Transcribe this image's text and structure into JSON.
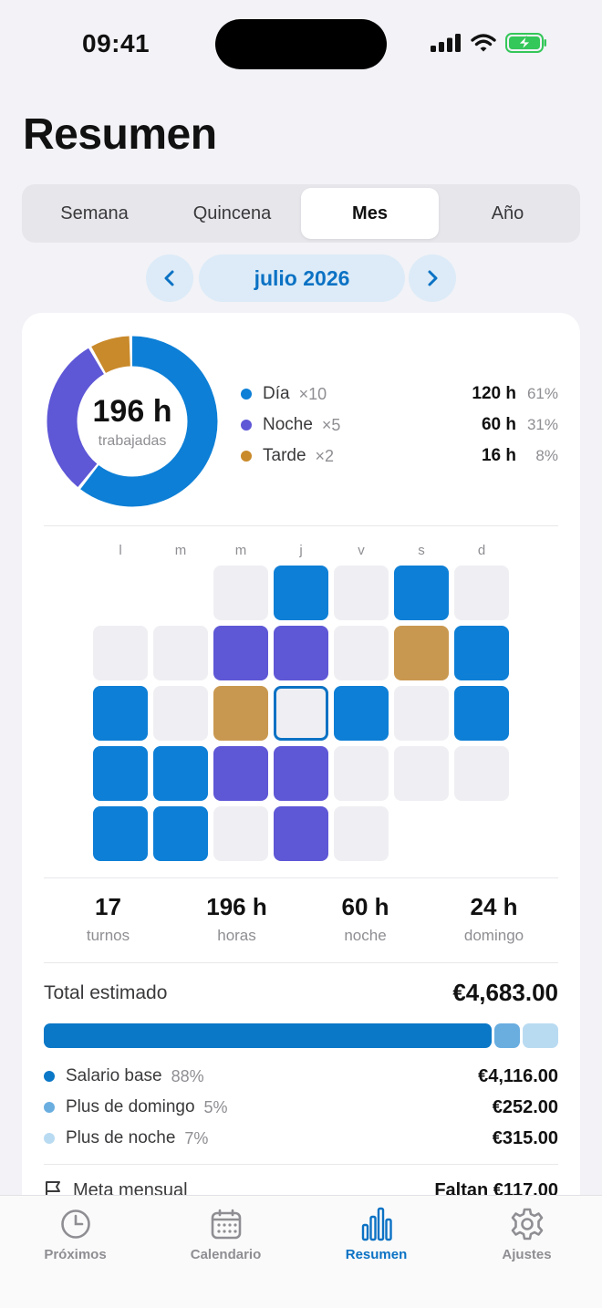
{
  "status_bar": {
    "time": "09:41"
  },
  "page": {
    "title": "Resumen"
  },
  "segments": [
    {
      "label": "Semana",
      "active": false
    },
    {
      "label": "Quincena",
      "active": false
    },
    {
      "label": "Mes",
      "active": true
    },
    {
      "label": "Año",
      "active": false
    }
  ],
  "month_nav": {
    "label": "julio 2026",
    "prev_icon": "chevron-left-icon",
    "next_icon": "chevron-right-icon"
  },
  "donut": {
    "value": "196 h",
    "caption": "trabajadas",
    "segments": [
      {
        "name": "Día",
        "fraction": 0.61,
        "color": "#0d7fd6"
      },
      {
        "name": "Noche",
        "fraction": 0.31,
        "color": "#5e57d6"
      },
      {
        "name": "Tarde",
        "fraction": 0.08,
        "color": "#c98a2b"
      }
    ]
  },
  "legend": [
    {
      "name": "Día",
      "count": "×10",
      "hours": "120 h",
      "pct": "61%",
      "color": "#0d7fd6"
    },
    {
      "name": "Noche",
      "count": "×5",
      "hours": "60 h",
      "pct": "31%",
      "color": "#5e57d6"
    },
    {
      "name": "Tarde",
      "count": "×2",
      "hours": "16 h",
      "pct": "8%",
      "color": "#c98a2b"
    }
  ],
  "calendar": {
    "weekdays": [
      "l",
      "m",
      "m",
      "j",
      "v",
      "s",
      "d"
    ],
    "cells": [
      "empty",
      "empty",
      "free",
      "dia",
      "free",
      "dia",
      "free",
      "free",
      "free",
      "noche",
      "noche",
      "free",
      "tarde",
      "dia",
      "dia",
      "free",
      "tarde",
      "today",
      "dia",
      "free",
      "dia",
      "dia",
      "dia",
      "noche",
      "noche",
      "free",
      "free",
      "free",
      "dia",
      "dia",
      "free",
      "noche",
      "free",
      "empty",
      "empty"
    ]
  },
  "stats": [
    {
      "value": "17",
      "label": "turnos"
    },
    {
      "value": "196 h",
      "label": "horas"
    },
    {
      "value": "60 h",
      "label": "noche"
    },
    {
      "value": "24 h",
      "label": "domingo"
    }
  ],
  "total": {
    "label": "Total estimado",
    "value": "€4,683.00"
  },
  "breakdown": [
    {
      "name": "Salario base",
      "pct": "88%",
      "amount": "€4,116.00",
      "fraction": 0.88,
      "color": "#0b78c7"
    },
    {
      "name": "Plus de domingo",
      "pct": "5%",
      "amount": "€252.00",
      "fraction": 0.05,
      "color": "#6aaee0"
    },
    {
      "name": "Plus de noche",
      "pct": "7%",
      "amount": "€315.00",
      "fraction": 0.07,
      "color": "#b9dbf2"
    }
  ],
  "meta": {
    "label": "Meta mensual",
    "value": "Faltan €117.00"
  },
  "tabbar": [
    {
      "label": "Próximos",
      "icon": "clock-icon",
      "active": false
    },
    {
      "label": "Calendario",
      "icon": "calendar-icon",
      "active": false
    },
    {
      "label": "Resumen",
      "icon": "chart-bars-icon",
      "active": true
    },
    {
      "label": "Ajustes",
      "icon": "gear-icon",
      "active": false
    }
  ]
}
